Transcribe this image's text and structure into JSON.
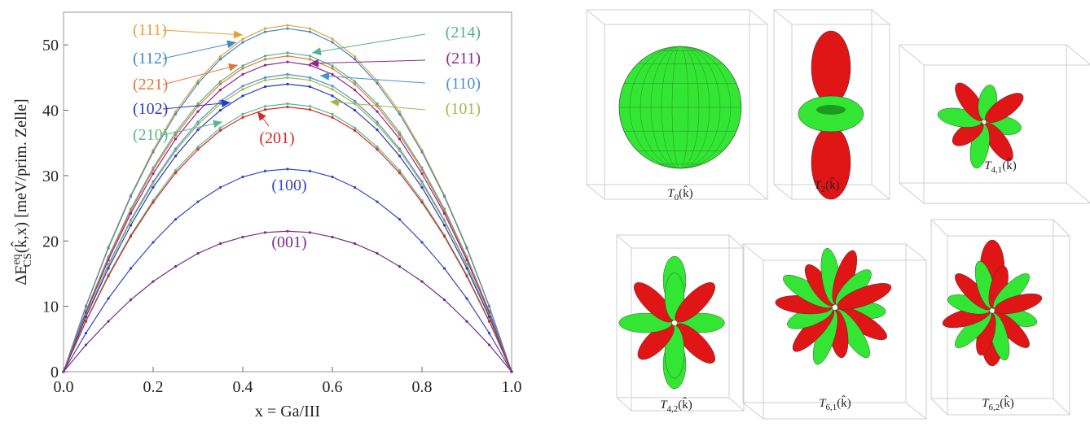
{
  "chart_data": {
    "type": "line",
    "x_label": "x = Ga/III",
    "y_label": {
      "base": "ΔE",
      "sup": "eq",
      "sub": "CS",
      "rest": "(k̂,x) [meV/prim. Zelle]"
    },
    "xlim": [
      0,
      1
    ],
    "ylim": [
      0,
      55
    ],
    "xticks": [
      {
        "value": 0,
        "label": "0.0"
      },
      0.2,
      0.4,
      0.6,
      0.8,
      {
        "value": 1,
        "label": "1.0"
      }
    ],
    "yticks": [
      0,
      10,
      20,
      30,
      40,
      50
    ],
    "x": [
      0,
      0.05,
      0.1,
      0.15,
      0.2,
      0.25,
      0.3,
      0.35,
      0.4,
      0.45,
      0.5,
      0.55,
      0.6,
      0.65,
      0.7,
      0.75,
      0.8,
      0.85,
      0.9,
      0.95,
      1
    ],
    "series": [
      {
        "name": "(111)",
        "color": "#e3a23a",
        "values": [
          0,
          10.1,
          19.1,
          27.0,
          33.9,
          39.8,
          44.5,
          48.2,
          50.9,
          52.5,
          53,
          52.5,
          50.9,
          48.2,
          44.5,
          39.8,
          33.9,
          27.0,
          19.1,
          10.1,
          0
        ]
      },
      {
        "name": "(112)",
        "color": "#3f8cc4",
        "values": [
          0,
          10.0,
          18.9,
          26.8,
          33.6,
          39.4,
          44.1,
          47.8,
          50.4,
          52.0,
          52.5,
          52.0,
          50.4,
          47.8,
          44.1,
          39.4,
          33.6,
          26.8,
          18.9,
          10.0,
          0
        ]
      },
      {
        "name": "(214)",
        "color": "#57b08a",
        "values": [
          0,
          9.3,
          17.6,
          24.9,
          31.2,
          36.6,
          41.0,
          44.4,
          46.8,
          48.3,
          48.8,
          48.3,
          46.8,
          44.4,
          41.0,
          36.6,
          31.2,
          24.9,
          17.6,
          9.3,
          0
        ]
      },
      {
        "name": "(221)",
        "color": "#e0763a",
        "values": [
          0,
          9.2,
          17.4,
          24.6,
          30.9,
          36.2,
          40.6,
          44.0,
          46.4,
          47.8,
          48.3,
          47.8,
          46.4,
          44.0,
          40.6,
          36.2,
          30.9,
          24.6,
          17.4,
          9.2,
          0
        ]
      },
      {
        "name": "(211)",
        "color": "#8a2a8a",
        "values": [
          0,
          9.0,
          17.1,
          24.2,
          30.3,
          35.6,
          39.8,
          43.1,
          45.5,
          46.9,
          47.4,
          46.9,
          45.5,
          43.1,
          39.8,
          35.6,
          30.3,
          24.2,
          17.1,
          9.0,
          0
        ]
      },
      {
        "name": "(110)",
        "color": "#4b90d0",
        "values": [
          0,
          8.6,
          16.4,
          23.2,
          29.1,
          34.1,
          38.2,
          41.4,
          43.7,
          45.0,
          45.5,
          45.0,
          43.7,
          41.4,
          38.2,
          34.1,
          29.1,
          23.2,
          16.4,
          8.6,
          0
        ]
      },
      {
        "name": "(101)",
        "color": "#a7b64a",
        "values": [
          0,
          8.6,
          16.2,
          23.0,
          28.8,
          33.8,
          37.8,
          41.0,
          43.2,
          44.6,
          45,
          44.6,
          43.2,
          41.0,
          37.8,
          33.8,
          28.8,
          23.0,
          16.2,
          8.6,
          0
        ]
      },
      {
        "name": "(102)",
        "color": "#2a3ac4",
        "values": [
          0,
          8.4,
          15.8,
          22.4,
          28.2,
          33.0,
          37.0,
          40.0,
          42.2,
          43.6,
          44,
          43.6,
          42.2,
          40.0,
          37.0,
          33.0,
          28.2,
          22.4,
          15.8,
          8.4,
          0
        ]
      },
      {
        "name": "(210)",
        "color": "#5ab98a",
        "values": [
          0,
          7.8,
          14.8,
          20.9,
          26.2,
          30.8,
          34.4,
          37.3,
          39.4,
          40.6,
          41,
          40.6,
          39.4,
          37.3,
          34.4,
          30.8,
          26.2,
          20.9,
          14.8,
          7.8,
          0
        ]
      },
      {
        "name": "(201)",
        "color": "#d62828",
        "values": [
          0,
          7.7,
          14.6,
          20.7,
          25.9,
          30.4,
          34.0,
          36.9,
          38.9,
          40.1,
          40.5,
          40.1,
          38.9,
          36.9,
          34.0,
          30.4,
          25.9,
          20.7,
          14.6,
          7.7,
          0
        ]
      },
      {
        "name": "(100)",
        "color": "#3446c0",
        "values": [
          0,
          5.9,
          11.2,
          15.8,
          19.8,
          23.3,
          26.0,
          28.2,
          29.8,
          30.7,
          31,
          30.7,
          29.8,
          28.2,
          26.0,
          23.3,
          19.8,
          15.8,
          11.2,
          5.9,
          0
        ]
      },
      {
        "name": "(001)",
        "color": "#7a2a8a",
        "values": [
          0,
          4.1,
          7.7,
          11.0,
          13.8,
          16.1,
          18.1,
          19.6,
          20.6,
          21.3,
          21.5,
          21.3,
          20.6,
          19.6,
          18.1,
          16.1,
          13.8,
          11.0,
          7.7,
          4.1,
          0
        ]
      }
    ]
  },
  "panels": [
    {
      "symbol": "T",
      "sub": "0",
      "arg": "(k̂)"
    },
    {
      "symbol": "T",
      "sub": "2",
      "arg": "(k̂)"
    },
    {
      "symbol": "T",
      "sub": "4,1",
      "arg": "(k̂)"
    },
    {
      "symbol": "T",
      "sub": "4,2",
      "arg": "(k̂)"
    },
    {
      "symbol": "T",
      "sub": "6,1",
      "arg": "(k̂)"
    },
    {
      "symbol": "T",
      "sub": "6,2",
      "arg": "(k̂)"
    }
  ]
}
